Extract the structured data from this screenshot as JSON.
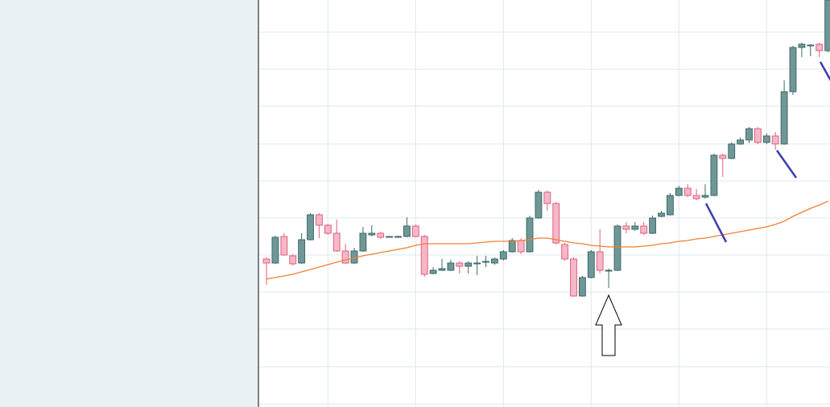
{
  "chart_data": {
    "type": "candlestick",
    "x": [
      0,
      1,
      2,
      3,
      4,
      5,
      6,
      7,
      8,
      9,
      10,
      11,
      12,
      13,
      14,
      15,
      16,
      17,
      18,
      19,
      20,
      21,
      22,
      23,
      24,
      25,
      26,
      27,
      28,
      29,
      30,
      31,
      32,
      33,
      34,
      35,
      36,
      37,
      38,
      39,
      40,
      41,
      42,
      43,
      44,
      45,
      46,
      47,
      48,
      49,
      50,
      51,
      52,
      53,
      54,
      55,
      56,
      57,
      58,
      59,
      60,
      61,
      62,
      63,
      64
    ],
    "open": [
      184,
      179,
      212,
      188,
      179,
      208,
      239,
      226,
      216,
      194,
      179,
      194,
      214,
      216,
      211,
      211,
      212,
      225,
      212,
      166,
      170,
      170,
      179,
      175,
      178,
      180,
      179,
      184,
      193,
      207,
      193,
      235,
      267,
      253,
      202,
      184,
      138,
      161,
      193,
      169,
      170,
      225,
      221,
      225,
      216,
      237,
      239,
      263,
      272,
      263,
      261,
      263,
      313,
      309,
      327,
      332,
      346,
      329,
      337,
      327,
      392,
      447,
      449,
      451,
      443
    ],
    "high": [
      186,
      213,
      216,
      190,
      216,
      241,
      241,
      228,
      233,
      203,
      198,
      224,
      226,
      218,
      212,
      213,
      236,
      227,
      214,
      174,
      184,
      183,
      181,
      181,
      188,
      188,
      186,
      195,
      210,
      210,
      238,
      270,
      269,
      255,
      204,
      186,
      163,
      195,
      221,
      172,
      227,
      230,
      230,
      230,
      238,
      244,
      266,
      275,
      277,
      271,
      277,
      315,
      315,
      329,
      335,
      348,
      348,
      340,
      342,
      406,
      449,
      453,
      451,
      453,
      506
    ],
    "low": [
      152,
      178,
      188,
      176,
      178,
      207,
      210,
      214,
      193,
      178,
      178,
      193,
      212,
      209,
      211,
      211,
      211,
      211,
      162,
      165,
      169,
      169,
      166,
      166,
      164,
      174,
      177,
      182,
      192,
      190,
      192,
      234,
      244,
      202,
      182,
      137,
      137,
      160,
      166,
      148,
      169,
      216,
      219,
      214,
      215,
      236,
      238,
      262,
      261,
      257,
      259,
      262,
      286,
      308,
      326,
      328,
      327,
      327,
      320,
      326,
      388,
      435,
      436,
      435,
      441
    ],
    "close": [
      179,
      211,
      189,
      178,
      208,
      239,
      226,
      216,
      194,
      179,
      194,
      216,
      216,
      211,
      212,
      212,
      225,
      212,
      165,
      170,
      172,
      179,
      175,
      179,
      179,
      181,
      184,
      193,
      207,
      193,
      235,
      267,
      253,
      204,
      184,
      138,
      161,
      193,
      170,
      170,
      225,
      221,
      225,
      216,
      235,
      241,
      263,
      272,
      263,
      259,
      263,
      313,
      309,
      327,
      332,
      346,
      329,
      337,
      327,
      392,
      447,
      451,
      450,
      443,
      506
    ],
    "up_color": "#6f9797",
    "down_color": "#f5b8c8",
    "moving_average": {
      "color": "#f08030",
      "values": [
        159,
        161,
        163,
        165,
        168,
        171,
        174,
        177,
        180,
        183,
        185,
        188,
        190,
        192,
        194,
        196,
        198,
        201,
        203,
        203,
        203,
        203,
        203,
        203,
        204,
        205,
        206,
        206,
        206,
        207,
        208,
        210,
        210,
        208,
        206,
        204,
        203,
        201,
        200,
        199,
        199,
        199,
        199,
        200,
        201,
        203,
        204,
        206,
        207,
        209,
        210,
        212,
        214,
        216,
        218,
        220,
        222,
        224,
        227,
        231,
        237,
        242,
        247,
        251,
        256
      ]
    },
    "xlim": [
      -0.92,
      64.22
    ],
    "xticks": [
      7,
      17,
      27,
      37,
      47,
      57
    ],
    "ylim": [
      0,
      506
    ],
    "yticks": [
      4,
      50,
      97,
      143,
      189,
      235,
      281,
      327,
      374,
      420,
      466
    ],
    "grid": true
  }
}
